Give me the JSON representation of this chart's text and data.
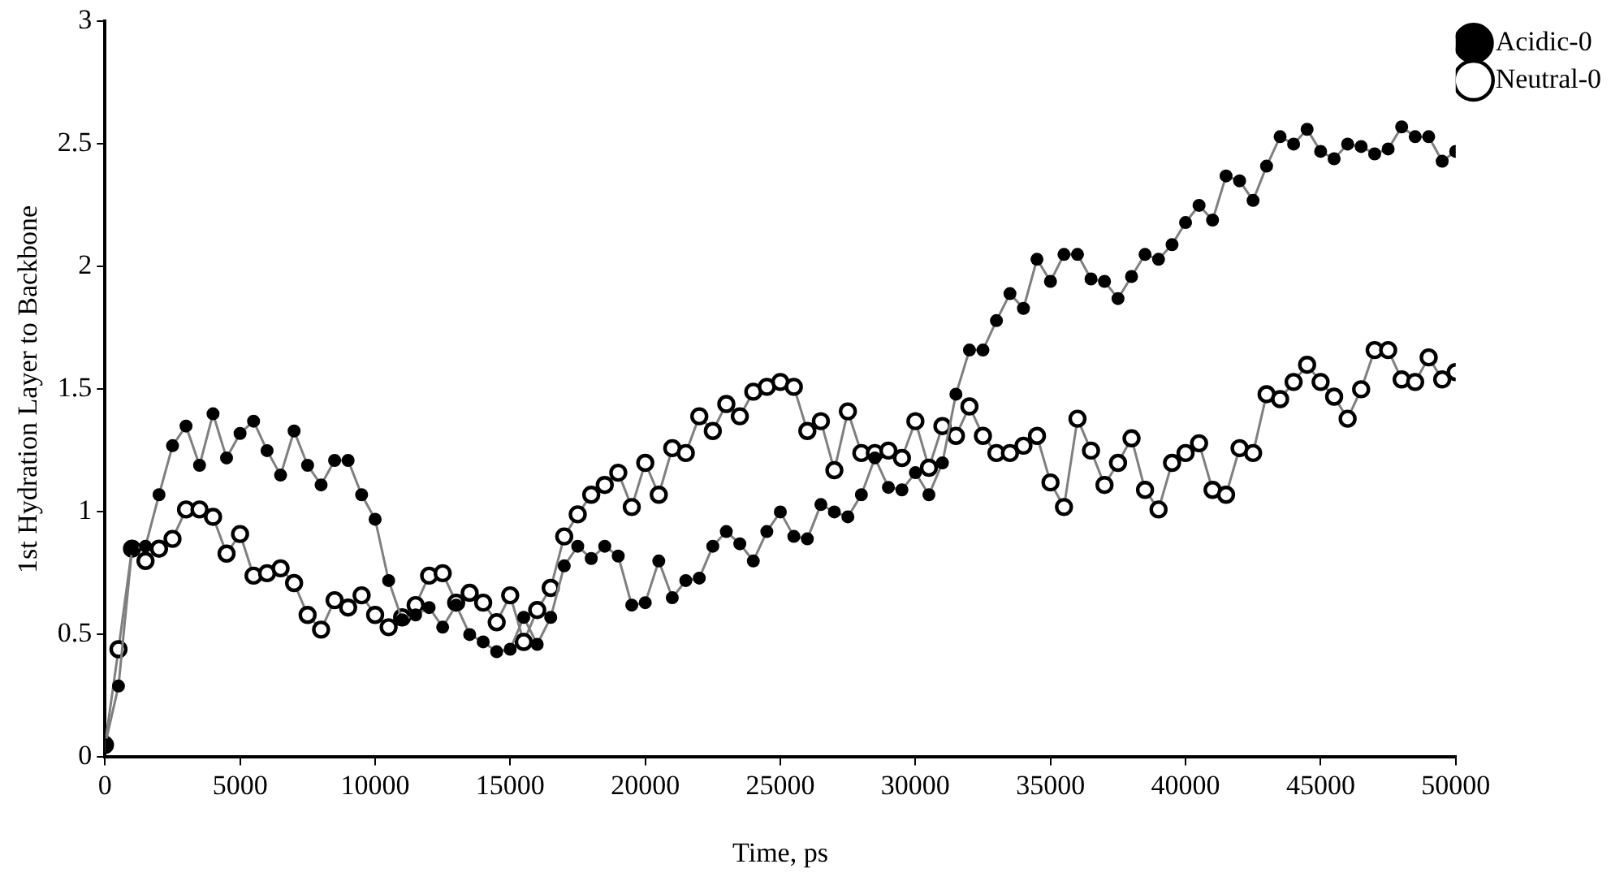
{
  "chart_data": {
    "type": "line",
    "xlabel": "Time, ps",
    "ylabel": "1st Hydration Layer to Backbone",
    "x": [
      0,
      500,
      1000,
      1500,
      2000,
      2500,
      3000,
      3500,
      4000,
      4500,
      5000,
      5500,
      6000,
      6500,
      7000,
      7500,
      8000,
      8500,
      9000,
      9500,
      10000,
      10500,
      11000,
      11500,
      12000,
      12500,
      13000,
      13500,
      14000,
      14500,
      15000,
      15500,
      16000,
      16500,
      17000,
      17500,
      18000,
      18500,
      19000,
      19500,
      20000,
      20500,
      21000,
      21500,
      22000,
      22500,
      23000,
      23500,
      24000,
      24500,
      25000,
      25500,
      26000,
      26500,
      27000,
      27500,
      28000,
      28500,
      29000,
      29500,
      30000,
      30500,
      31000,
      31500,
      32000,
      32500,
      33000,
      33500,
      34000,
      34500,
      35000,
      35500,
      36000,
      36500,
      37000,
      37500,
      38000,
      38500,
      39000,
      39500,
      40000,
      40500,
      41000,
      41500,
      42000,
      42500,
      43000,
      43500,
      44000,
      44500,
      45000,
      45500,
      46000,
      46500,
      47000,
      47500,
      48000,
      48500,
      49000,
      49500,
      50000
    ],
    "series": [
      {
        "name": "Acidic-0",
        "color": "#7f7f7f",
        "values": [
          0.05,
          0.29,
          0.85,
          0.86,
          1.07,
          1.27,
          1.35,
          1.19,
          1.4,
          1.22,
          1.32,
          1.37,
          1.25,
          1.15,
          1.33,
          1.19,
          1.11,
          1.21,
          1.21,
          1.07,
          0.97,
          0.72,
          0.56,
          0.58,
          0.61,
          0.53,
          0.62,
          0.5,
          0.47,
          0.43,
          0.44,
          0.57,
          0.46,
          0.57,
          0.78,
          0.86,
          0.81,
          0.86,
          0.82,
          0.62,
          0.63,
          0.8,
          0.65,
          0.72,
          0.73,
          0.86,
          0.92,
          0.87,
          0.8,
          0.92,
          1.0,
          0.9,
          0.89,
          1.03,
          1.0,
          0.98,
          1.07,
          1.22,
          1.1,
          1.09,
          1.16,
          1.07,
          1.2,
          1.48,
          1.66,
          1.66,
          1.78,
          1.89,
          1.83,
          2.03,
          1.94,
          2.05,
          2.05,
          1.95,
          1.94,
          1.87,
          1.96,
          2.05,
          2.03,
          2.09,
          2.18,
          2.25,
          2.19,
          2.37,
          2.35,
          2.27,
          2.41,
          2.53,
          2.5,
          2.56,
          2.47,
          2.44,
          2.5,
          2.49,
          2.46,
          2.48,
          2.57,
          2.53,
          2.53,
          2.43,
          2.47
        ]
      },
      {
        "name": "Neutral-0",
        "color": "#7f7f7f",
        "values": [
          0.05,
          0.44,
          0.85,
          0.8,
          0.85,
          0.89,
          1.01,
          1.01,
          0.98,
          0.83,
          0.91,
          0.74,
          0.75,
          0.77,
          0.71,
          0.58,
          0.52,
          0.64,
          0.61,
          0.66,
          0.58,
          0.53,
          0.57,
          0.62,
          0.74,
          0.75,
          0.63,
          0.67,
          0.63,
          0.55,
          0.66,
          0.47,
          0.6,
          0.69,
          0.9,
          0.99,
          1.07,
          1.11,
          1.16,
          1.02,
          1.2,
          1.07,
          1.26,
          1.24,
          1.39,
          1.33,
          1.44,
          1.39,
          1.49,
          1.51,
          1.53,
          1.51,
          1.33,
          1.37,
          1.17,
          1.41,
          1.24,
          1.24,
          1.25,
          1.22,
          1.37,
          1.18,
          1.35,
          1.31,
          1.43,
          1.31,
          1.24,
          1.24,
          1.27,
          1.31,
          1.12,
          1.02,
          1.38,
          1.25,
          1.11,
          1.2,
          1.3,
          1.09,
          1.01,
          1.2,
          1.24,
          1.28,
          1.09,
          1.07,
          1.26,
          1.24,
          1.48,
          1.46,
          1.53,
          1.6,
          1.53,
          1.47,
          1.38,
          1.5,
          1.66,
          1.66,
          1.54,
          1.53,
          1.63,
          1.54,
          1.57
        ]
      }
    ],
    "xlim": [
      0,
      50000
    ],
    "xticks": [
      0,
      5000,
      10000,
      15000,
      20000,
      25000,
      30000,
      35000,
      40000,
      45000,
      50000
    ],
    "ylim": [
      0,
      3
    ],
    "yticks": [
      0,
      0.5,
      1,
      1.5,
      2,
      2.5,
      3
    ],
    "grid": false,
    "legend": "top right",
    "marker": "circle",
    "line_style": "solid"
  }
}
